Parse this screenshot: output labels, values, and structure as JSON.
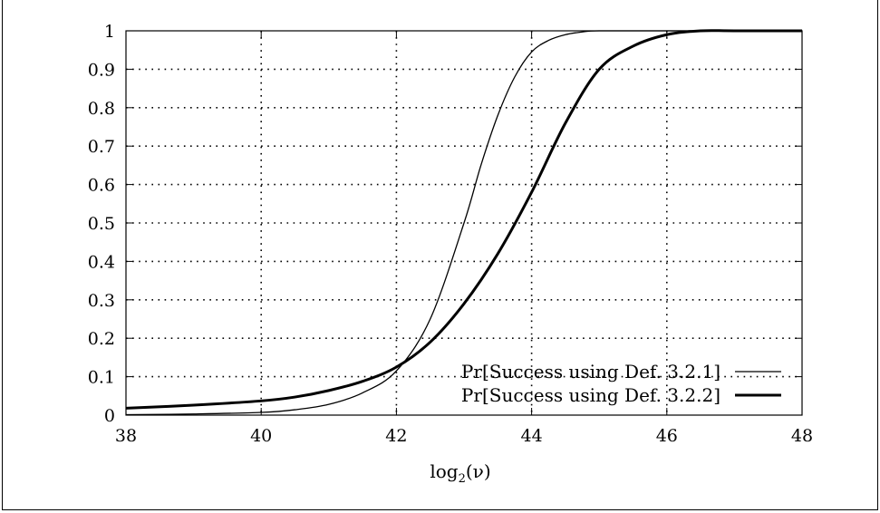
{
  "chart_data": {
    "type": "line",
    "title": "",
    "xlabel": "log2(ν)",
    "xlabel_main": "log",
    "xlabel_sub": "2",
    "xlabel_arg": "(ν)",
    "ylabel": "",
    "xlim": [
      38,
      48
    ],
    "ylim": [
      0,
      1
    ],
    "xticks": [
      38,
      40,
      42,
      44,
      46,
      48
    ],
    "yticks": [
      0,
      0.1,
      0.2,
      0.3,
      0.4,
      0.5,
      0.6,
      0.7,
      0.8,
      0.9,
      1
    ],
    "grid": true,
    "legend_position": "bottom-right",
    "series": [
      {
        "name": "Pr[Success using Def. 3.2.1]",
        "style": "thin",
        "x": [
          38,
          39,
          40,
          40.5,
          41,
          41.5,
          42,
          42.5,
          43,
          43.25,
          43.5,
          43.75,
          44,
          44.25,
          44.5,
          44.75,
          45,
          46,
          48
        ],
        "y": [
          0.001,
          0.003,
          0.007,
          0.014,
          0.028,
          0.058,
          0.115,
          0.25,
          0.5,
          0.65,
          0.78,
          0.88,
          0.945,
          0.975,
          0.99,
          0.997,
          1.0,
          1.0,
          1.0
        ]
      },
      {
        "name": "Pr[Success using Def. 3.2.2]",
        "style": "thick",
        "x": [
          38,
          39,
          40,
          40.5,
          41,
          41.5,
          42,
          42.5,
          43,
          43.5,
          44,
          44.5,
          45,
          45.5,
          46,
          46.5,
          47,
          48
        ],
        "y": [
          0.018,
          0.026,
          0.037,
          0.047,
          0.064,
          0.088,
          0.125,
          0.19,
          0.29,
          0.42,
          0.58,
          0.76,
          0.9,
          0.96,
          0.99,
          1.0,
          1.0,
          1.0
        ]
      }
    ]
  }
}
